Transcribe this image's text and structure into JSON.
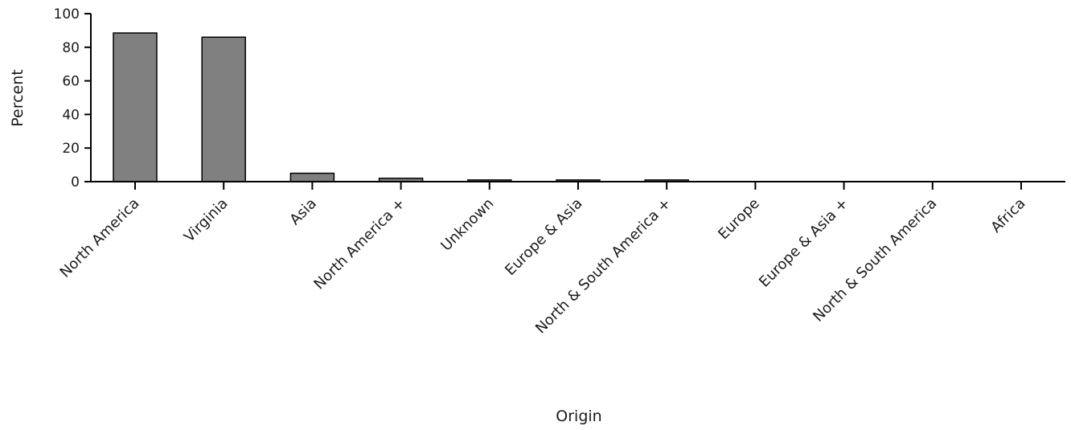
{
  "chart_data": {
    "type": "bar",
    "title": "",
    "xlabel": "Origin",
    "ylabel": "Percent",
    "ylim": [
      0,
      100
    ],
    "yticks": [
      0,
      20,
      40,
      60,
      80,
      100
    ],
    "categories": [
      "North America",
      "Virginia",
      "Asia",
      "North America +",
      "Unknown",
      "Europe & Asia",
      "North & South America +",
      "Europe",
      "Europe & Asia +",
      "North & South America",
      "Africa"
    ],
    "values": [
      88.5,
      86,
      5,
      2,
      1,
      1,
      1,
      0,
      0,
      0,
      0
    ],
    "bar_color": "#808080",
    "bar_edge_color": "#000000",
    "grid": false,
    "legend": "none"
  }
}
